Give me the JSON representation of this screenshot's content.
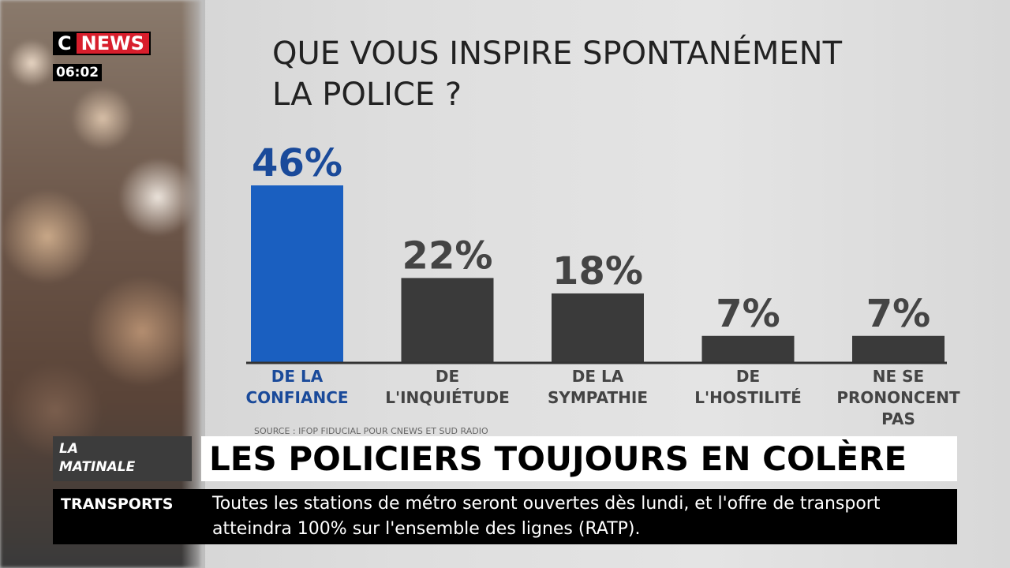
{
  "channel": {
    "logo_c": "C",
    "logo_news": "NEWS",
    "time": "06:02",
    "brand_color": "#d81e2c"
  },
  "chart_data": {
    "type": "bar",
    "title": "QUE VOUS INSPIRE SPONTANÉMENT LA POLICE ?",
    "title_lines": [
      "QUE VOUS INSPIRE SPONTANÉMENT",
      "LA POLICE ?"
    ],
    "categories": [
      [
        "DE LA",
        "CONFIANCE"
      ],
      [
        "DE",
        "L'INQUIÉTUDE"
      ],
      [
        "DE LA",
        "SYMPATHIE"
      ],
      [
        "DE",
        "L'HOSTILITÉ"
      ],
      [
        "NE SE",
        "PRONONCENT",
        "PAS"
      ]
    ],
    "values": [
      46,
      22,
      18,
      7,
      7
    ],
    "data_labels": [
      "46%",
      "22%",
      "18%",
      "7%",
      "7%"
    ],
    "unit": "%",
    "highlight_index": 0,
    "colors": {
      "highlight": "#1a5fc0",
      "bar": "#3a3a3a",
      "highlight_label": "#1a4a9a",
      "label": "#444444"
    },
    "ylim": [
      0,
      50
    ],
    "grid": false,
    "source": "SOURCE : IFOP FIDUCIAL POUR CNEWS ET SUD RADIO"
  },
  "banner": {
    "show": "LA MATINALE",
    "show_lines": [
      "LA",
      "MATINALE"
    ],
    "headline": "LES POLICIERS TOUJOURS EN COLÈRE"
  },
  "ticker": {
    "tag": "TRANSPORTS",
    "text": "Toutes les stations de métro seront ouvertes dès lundi, et l'offre de transport atteindra 100% sur l'ensemble des lignes (RATP)."
  }
}
